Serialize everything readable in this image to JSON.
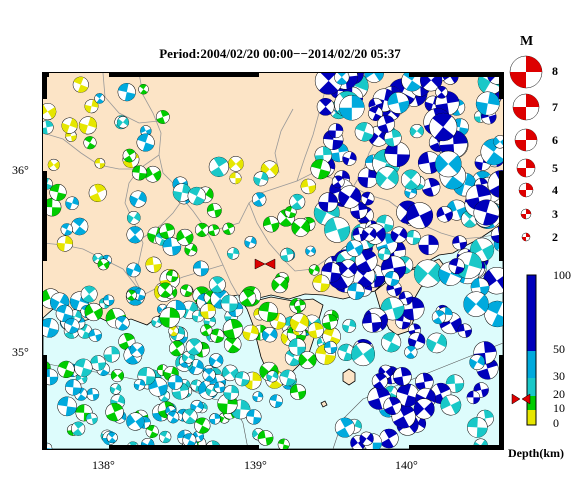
{
  "title": "Period:2004/02/20 00:00−−2014/02/20 05:37",
  "map": {
    "x_ticks": [
      "138°",
      "139°",
      "140°"
    ],
    "y_ticks": [
      "36°",
      "35°"
    ],
    "colors": {
      "land": "#fce4c6",
      "sea": "#ddfcfc",
      "border": "#999999",
      "coast": "#000000"
    }
  },
  "magnitude_legend": {
    "title": "M",
    "items": [
      "8",
      "7",
      "6",
      "5",
      "4",
      "3",
      "2"
    ]
  },
  "depth_legend": {
    "title": "Depth(km)",
    "ticks": [
      "100",
      "50",
      "30",
      "20",
      "10",
      "0"
    ],
    "bands": [
      {
        "from": 0,
        "to": 10,
        "color": "#e6e600"
      },
      {
        "from": 10,
        "to": 20,
        "color": "#00cc00"
      },
      {
        "from": 20,
        "to": 30,
        "color": "#19c8c8"
      },
      {
        "from": 30,
        "to": 50,
        "color": "#00aadd"
      },
      {
        "from": 50,
        "to": 100,
        "color": "#0000bb"
      }
    ]
  },
  "event_marker": {
    "depth_km": 20,
    "color": "#dd0000"
  }
}
